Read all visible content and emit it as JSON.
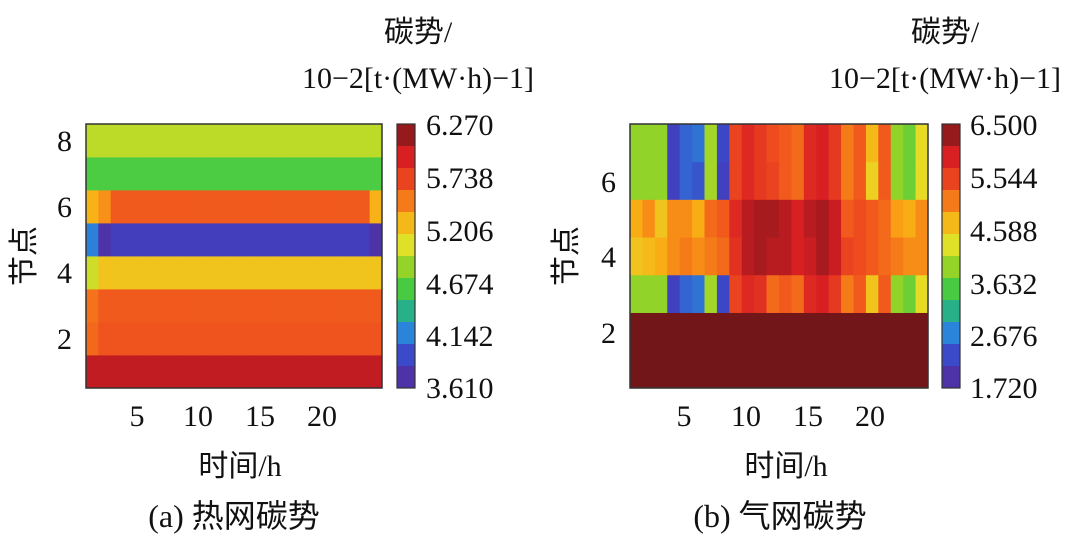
{
  "chart_data": [
    {
      "type": "heatmap",
      "caption": "(a) 热网碳势",
      "xlabel": "时间/h",
      "ylabel": "节点",
      "colorbar_title_line1": "碳势/",
      "colorbar_title_line2": "10−2[t·(MW·h)−1]",
      "x_ticks": [
        "5",
        "10",
        "15",
        "20"
      ],
      "y_ticks": [
        "2",
        "4",
        "6",
        "8"
      ],
      "colorbar_ticks": [
        "6.270",
        "5.738",
        "5.206",
        "4.674",
        "4.142",
        "3.610"
      ],
      "vmin": 3.61,
      "vmax": 6.27,
      "hours": 24,
      "nodes": 8,
      "rows": [
        {
          "node": 1,
          "base": 6.02,
          "overrides": {}
        },
        {
          "node": 2,
          "base": 5.62,
          "overrides": {
            "1": 5.55
          }
        },
        {
          "node": 3,
          "base": 5.6,
          "overrides": {
            "1": 5.52
          }
        },
        {
          "node": 4,
          "base": 5.22,
          "overrides": {
            "1": 5.0
          }
        },
        {
          "node": 5,
          "base": 3.85,
          "overrides": {
            "1": 4.15,
            "2": 3.72,
            "24": 3.72
          }
        },
        {
          "node": 6,
          "base": 5.6,
          "overrides": {
            "1": 5.3,
            "2": 5.42,
            "24": 5.3
          }
        },
        {
          "node": 7,
          "base": 4.62,
          "overrides": {}
        },
        {
          "node": 8,
          "base": 4.95,
          "overrides": {}
        }
      ]
    },
    {
      "type": "heatmap",
      "caption": "(b) 气网碳势",
      "xlabel": "时间/h",
      "ylabel": "节点",
      "colorbar_title_line1": "碳势/",
      "colorbar_title_line2": "10−2[t·(MW·h)−1]",
      "x_ticks": [
        "5",
        "10",
        "15",
        "20"
      ],
      "y_ticks": [
        "2",
        "4",
        "6"
      ],
      "colorbar_ticks": [
        "6.500",
        "5.544",
        "4.588",
        "3.632",
        "2.676",
        "1.720"
      ],
      "vmin": 1.72,
      "vmax": 6.5,
      "hours": 24,
      "nodes": 7,
      "rows": [
        {
          "node": 1,
          "values": [
            6.5,
            6.5,
            6.5,
            6.5,
            6.5,
            6.5,
            6.5,
            6.5,
            6.5,
            6.5,
            6.5,
            6.5,
            6.5,
            6.5,
            6.5,
            6.5,
            6.5,
            6.5,
            6.5,
            6.5,
            6.5,
            6.5,
            6.5,
            6.5
          ]
        },
        {
          "node": 2,
          "values": [
            6.5,
            6.5,
            6.5,
            6.5,
            6.5,
            6.5,
            6.5,
            6.5,
            6.5,
            6.5,
            6.5,
            6.5,
            6.5,
            6.5,
            6.5,
            6.5,
            6.5,
            6.5,
            6.5,
            6.5,
            6.5,
            6.5,
            6.5,
            6.5
          ]
        },
        {
          "node": 3,
          "values": [
            3.9,
            3.9,
            3.9,
            2.2,
            2.5,
            2.6,
            4.0,
            2.3,
            5.5,
            5.8,
            5.7,
            5.2,
            5.3,
            5.2,
            5.8,
            5.9,
            5.6,
            5.1,
            5.3,
            4.6,
            5.3,
            3.9,
            3.7,
            4.4
          ]
        },
        {
          "node": 4,
          "values": [
            4.6,
            4.7,
            4.8,
            5.0,
            5.1,
            5.0,
            5.1,
            5.2,
            5.7,
            6.1,
            6.2,
            6.1,
            6.1,
            5.9,
            6.0,
            6.2,
            6.0,
            5.5,
            5.4,
            5.3,
            5.2,
            5.1,
            5.0,
            5.0
          ]
        },
        {
          "node": 5,
          "values": [
            4.8,
            5.0,
            4.6,
            5.0,
            5.0,
            4.8,
            5.2,
            5.3,
            5.8,
            6.1,
            6.2,
            6.2,
            6.1,
            5.9,
            6.1,
            6.2,
            6.0,
            5.3,
            5.4,
            5.3,
            5.2,
            4.9,
            4.8,
            5.0
          ]
        },
        {
          "node": 6,
          "values": [
            3.9,
            3.9,
            3.9,
            2.2,
            2.5,
            2.4,
            4.0,
            2.2,
            5.5,
            5.8,
            5.6,
            5.5,
            5.3,
            5.2,
            5.8,
            5.9,
            5.6,
            5.1,
            5.3,
            4.5,
            5.3,
            3.9,
            3.7,
            4.4
          ]
        },
        {
          "node": 7,
          "values": [
            3.9,
            3.9,
            3.9,
            2.2,
            2.5,
            2.6,
            4.0,
            2.3,
            5.5,
            5.8,
            5.6,
            5.4,
            5.3,
            5.2,
            5.8,
            5.9,
            5.6,
            5.1,
            5.3,
            4.7,
            5.3,
            3.9,
            3.7,
            4.4
          ]
        }
      ]
    }
  ]
}
